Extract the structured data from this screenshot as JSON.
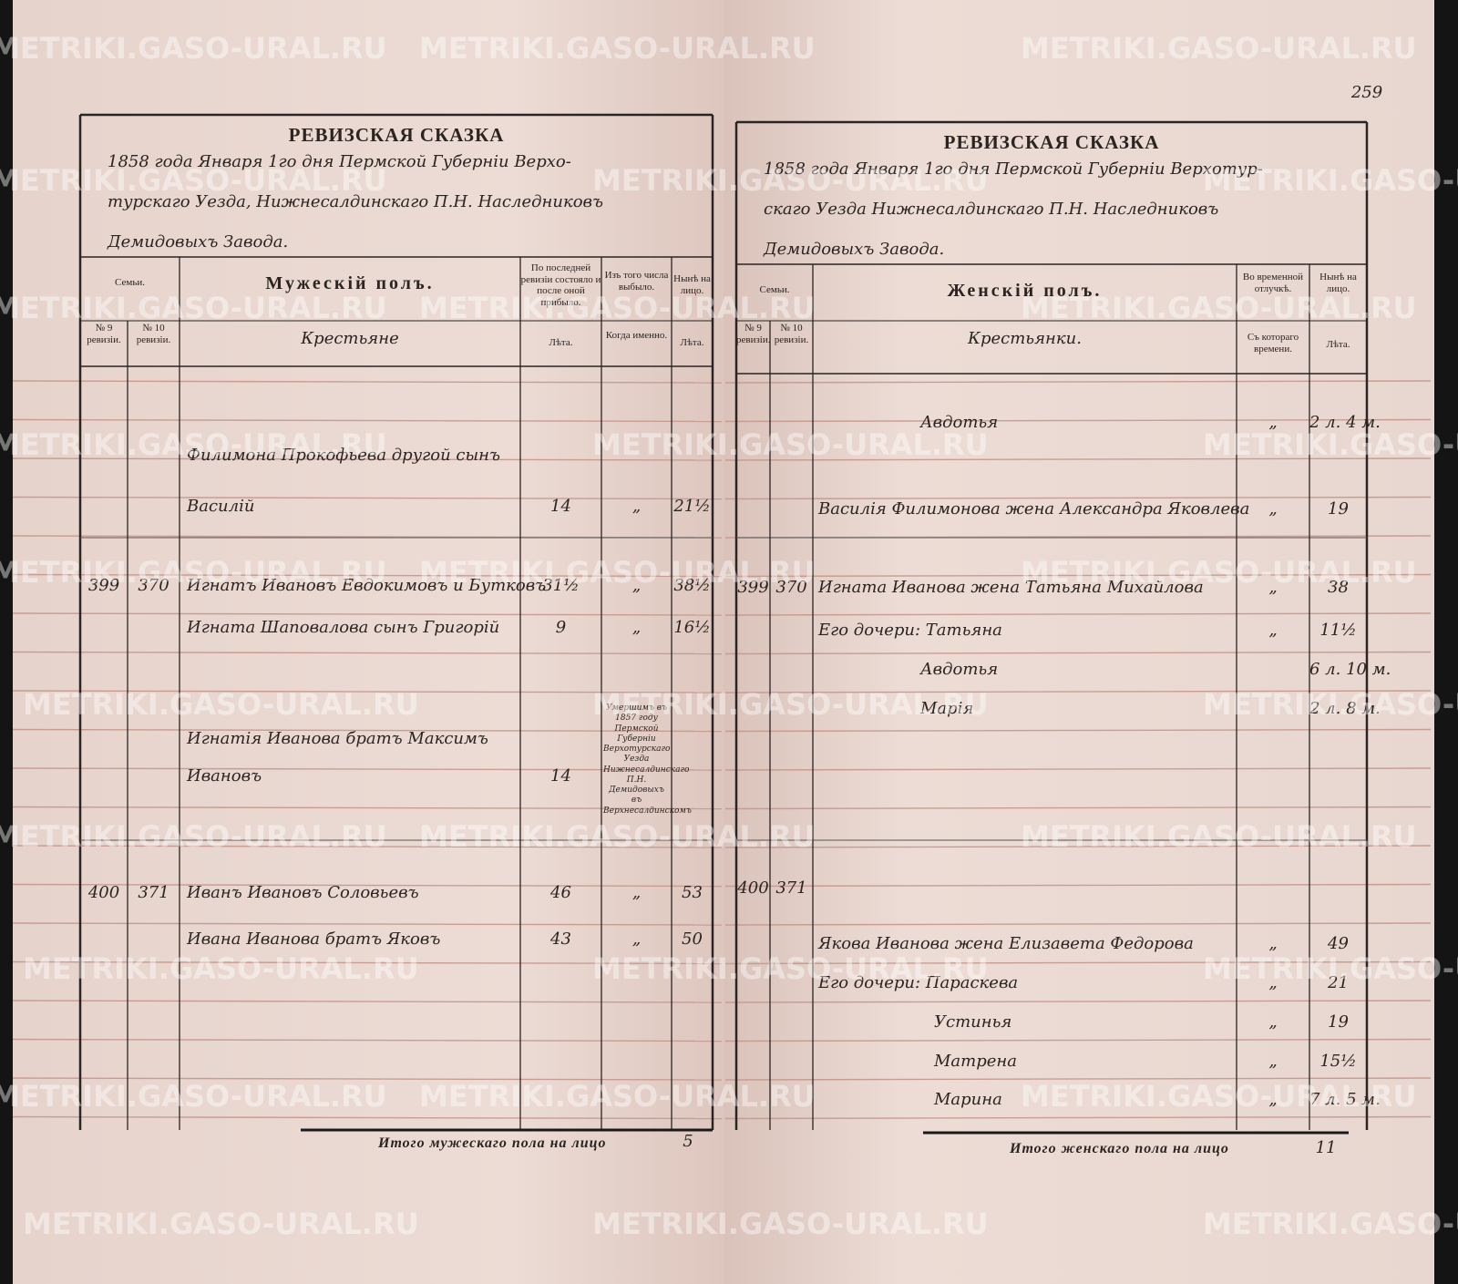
{
  "watermark": "METRIKI.GASO-URAL.RU",
  "page_number": "259",
  "left_page": {
    "title": "РЕВИЗСКАЯ СКАЗКА",
    "heading_lines": [
      "1858 года Января 1го дня Пермской Губерніи Верхо-",
      "турскаго Уезда, Нижнесалдинскаго П.Н. Наследниковъ",
      "Демидовыхъ Завода."
    ],
    "columns": {
      "family": "Семьи.",
      "no9": "№ 9 ревизіи.",
      "no10": "№ 10 ревизіи.",
      "sex": "Мужескій полъ.",
      "prev": "По последней ревизіи состояло и после оной прибыло.",
      "left": "Изъ того числа выбыло.",
      "now": "Нынѣ на лицо.",
      "estate": "Крестьяне",
      "prev_age": "Лѣта.",
      "left_when": "Когда именно.",
      "now_age": "Лѣта."
    },
    "rows": [
      {
        "name": "Филимона Прокофьева другой сынъ"
      },
      {
        "name": "Василій",
        "prev": "14",
        "left": "„",
        "now": "21½"
      },
      {
        "no9": "399",
        "no10": "370",
        "name": "Игнатъ Ивановъ Евдокимовъ и Бутковъ",
        "prev": "31½",
        "left": "„",
        "now": "38½"
      },
      {
        "name": "Игната Шаповалова сынъ Григорій",
        "prev": "9",
        "left": "„",
        "now": "16½"
      },
      {
        "name": "Игнатія Иванова братъ Максимъ"
      },
      {
        "name": "Ивановъ",
        "prev": "14",
        "note": "Умершимъ въ 1857 году Пермской Губерніи Верхотурскаго Уезда Нижнесалдинскаго П.Н. Демидовыхъ въ Верхнесалдинскомъ"
      },
      {
        "no9": "400",
        "no10": "371",
        "name": "Иванъ Ивановъ Соловьевъ",
        "prev": "46",
        "left": "„",
        "now": "53"
      },
      {
        "name": "Ивана Иванова братъ Яковъ",
        "prev": "43",
        "left": "„",
        "now": "50"
      }
    ],
    "total_label": "Итого мужескаго пола на лицо",
    "total": "5"
  },
  "right_page": {
    "title": "РЕВИЗСКАЯ СКАЗКА",
    "heading_lines": [
      "1858 года Января 1го дня Пермской Губерніи Верхотур-",
      "скаго Уезда Нижнесалдинскаго П.Н. Наследниковъ",
      "Демидовыхъ Завода."
    ],
    "columns": {
      "family": "Семьи.",
      "no9": "№ 9 ревизіи.",
      "no10": "№ 10 ревизіи.",
      "sex": "Женскій полъ.",
      "away": "Во временной отлучкѣ.",
      "now": "Нынѣ на лицо.",
      "estate": "Крестьянки.",
      "away_since": "Съ котораго времени.",
      "now_age": "Лѣта."
    },
    "rows": [
      {
        "name": "Авдотья",
        "away": "„",
        "now": "2 л. 4 м."
      },
      {
        "name": "Василія Филимонова жена Александра Яковлева",
        "away": "„",
        "now": "19"
      },
      {
        "no9": "399",
        "no10": "370",
        "name": "Игната Иванова жена Татьяна Михайлова",
        "away": "„",
        "now": "38"
      },
      {
        "name": "Его дочери: Татьяна",
        "away": "„",
        "now": "11½"
      },
      {
        "name": "Авдотья",
        "now": "6 л. 10 м."
      },
      {
        "name": "Марія",
        "now": "2 л. 8 м."
      },
      {
        "no9": "400",
        "no10": "371"
      },
      {
        "name": "Якова Иванова жена Елизавета Федорова",
        "away": "„",
        "now": "49"
      },
      {
        "name": "Его дочери: Параскева",
        "away": "„",
        "now": "21"
      },
      {
        "name": "Устинья",
        "away": "„",
        "now": "19"
      },
      {
        "name": "Матрена",
        "away": "„",
        "now": "15½"
      },
      {
        "name": "Марина",
        "away": "„",
        "now": "7 л. 5 м."
      }
    ],
    "total_label": "Итого женскаго пола на лицо",
    "total": "11"
  }
}
